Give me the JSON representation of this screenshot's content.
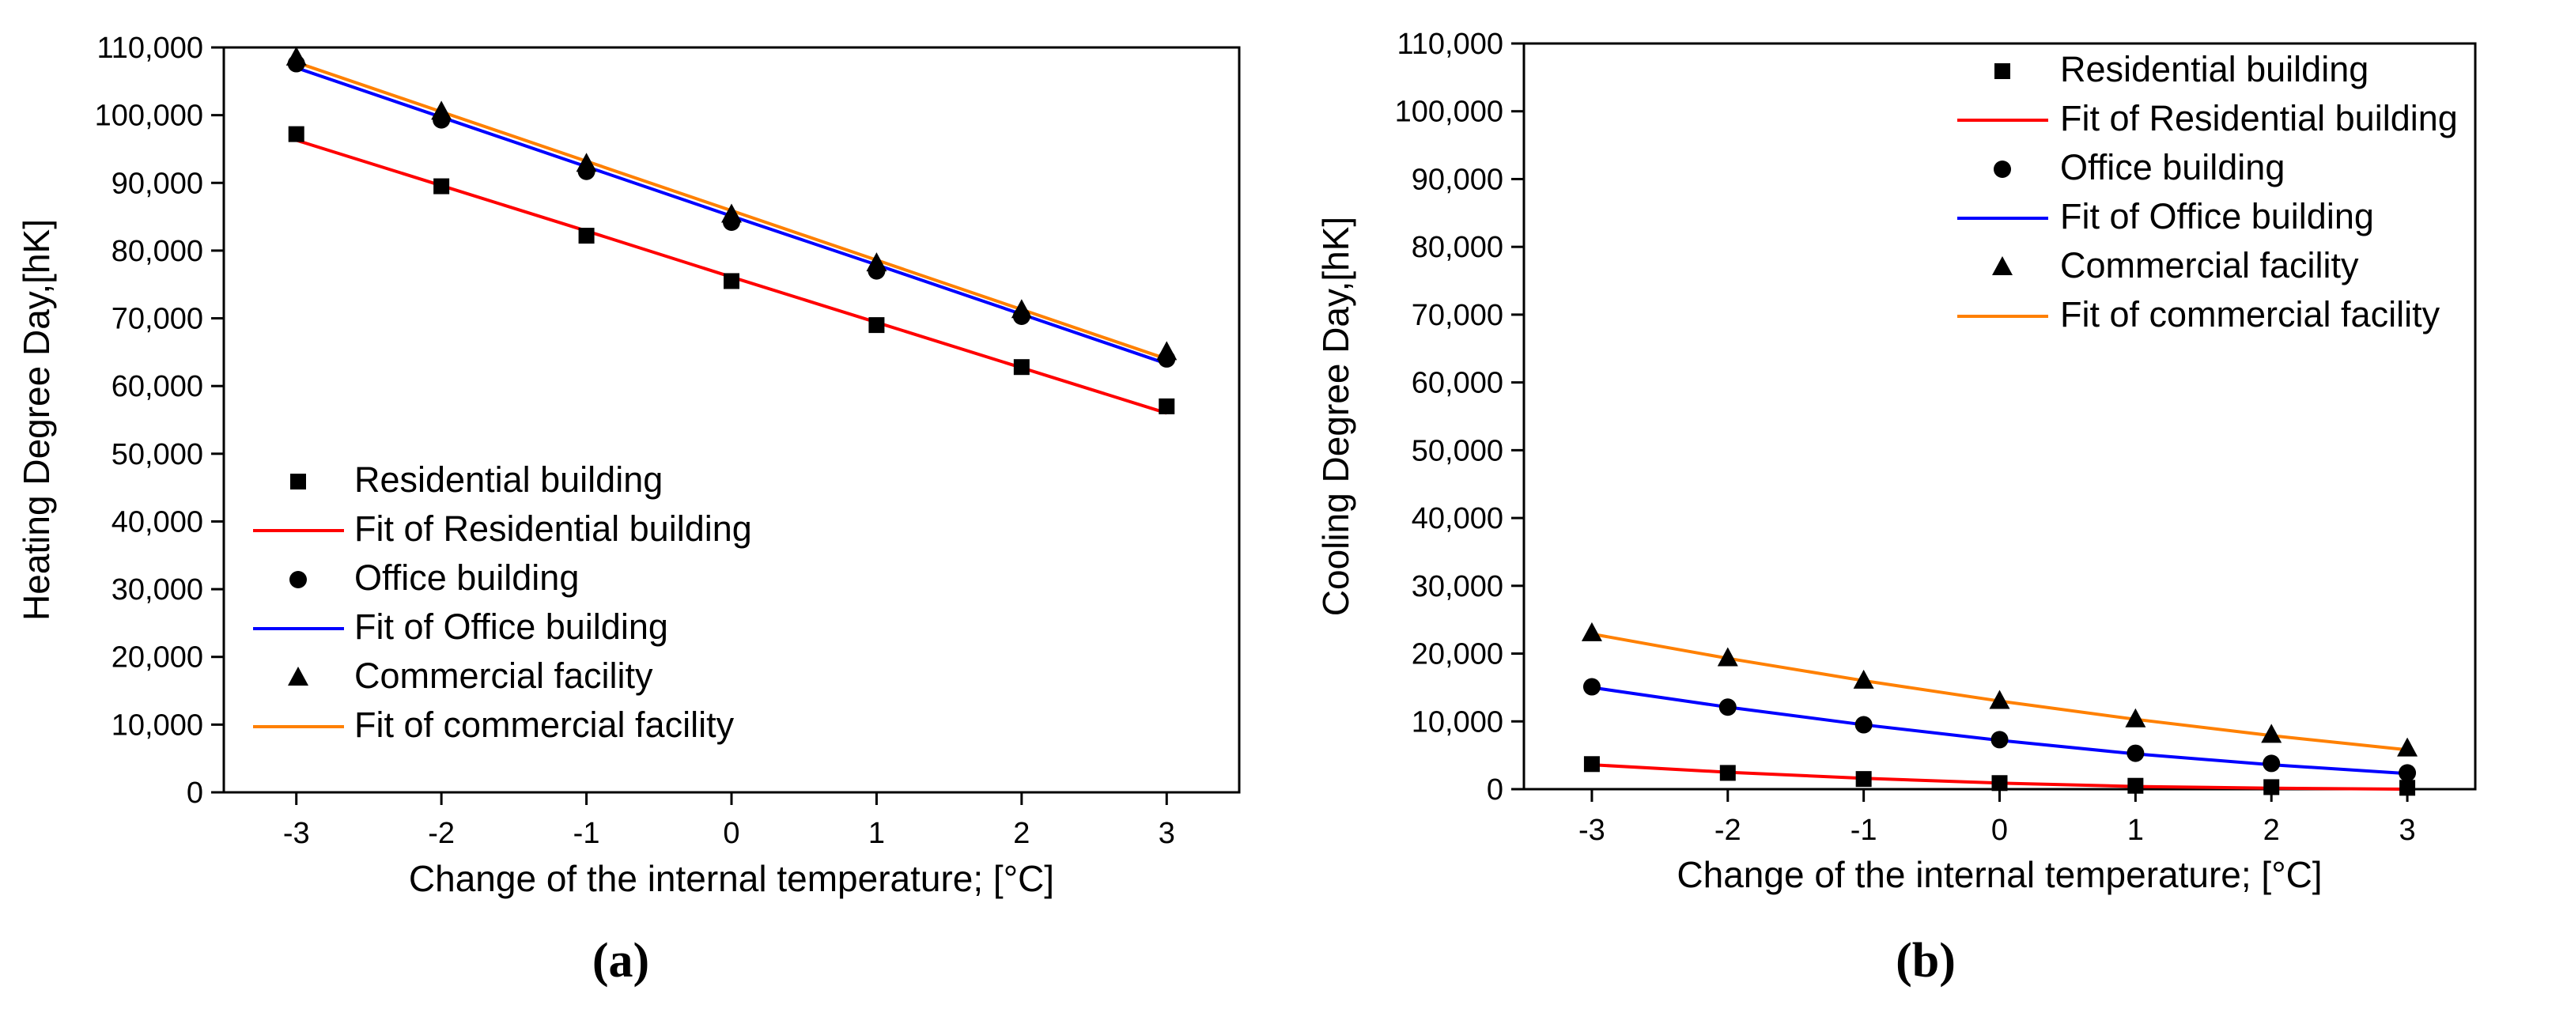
{
  "colors": {
    "residential": "#ff0000",
    "office": "#0000ff",
    "commercial": "#ff8000",
    "markers": "#000000"
  },
  "chart_data": [
    {
      "type": "scatter",
      "panel_label": "(a)",
      "xlabel": "Change of the internal temperature; [°C]",
      "ylabel": "Heating Degree Day,[hK]",
      "x": [
        -3,
        -2,
        -1,
        0,
        1,
        2,
        3
      ],
      "xlim": [
        -3.5,
        3.5
      ],
      "ylim": [
        0,
        110000
      ],
      "xticks": [
        -3,
        -2,
        -1,
        0,
        1,
        2,
        3
      ],
      "yticks": [
        0,
        10000,
        20000,
        30000,
        40000,
        50000,
        60000,
        70000,
        80000,
        90000,
        100000,
        110000
      ],
      "ytick_labels": [
        "0",
        "10,000",
        "20,000",
        "30,000",
        "40,000",
        "50,000",
        "60,000",
        "70,000",
        "80,000",
        "90,000",
        "100,000",
        "110,000"
      ],
      "legend_position": "bottom-left",
      "series": [
        {
          "name": "Residential building",
          "marker": "square",
          "values": [
            97200,
            89500,
            82200,
            75500,
            69000,
            62800,
            57000
          ],
          "fit_name": "Fit of Residential building",
          "fit": [
            96300,
            89600,
            82900,
            76100,
            69400,
            62700,
            56000
          ],
          "color_key": "residential"
        },
        {
          "name": "Office building",
          "marker": "circle",
          "values": [
            107600,
            99300,
            91700,
            84200,
            77000,
            70300,
            64000
          ],
          "fit_name": "Fit of Office building",
          "fit": [
            107000,
            99700,
            92400,
            85100,
            77900,
            70600,
            63300
          ],
          "color_key": "office"
        },
        {
          "name": "Commercial facility",
          "marker": "triangle",
          "values": [
            108500,
            100500,
            92800,
            85300,
            78100,
            71200,
            65000
          ],
          "fit_name": "Fit of commercial facility",
          "fit": [
            107800,
            100500,
            93200,
            85900,
            78600,
            71300,
            64000
          ],
          "color_key": "commercial"
        }
      ]
    },
    {
      "type": "scatter",
      "panel_label": "(b)",
      "xlabel": "Change of the internal temperature; [°C]",
      "ylabel": "Cooling Degree Day,[hK]",
      "x": [
        -3,
        -2,
        -1,
        0,
        1,
        2,
        3
      ],
      "xlim": [
        -3.5,
        3.5
      ],
      "ylim": [
        0,
        110000
      ],
      "xticks": [
        -3,
        -2,
        -1,
        0,
        1,
        2,
        3
      ],
      "yticks": [
        0,
        10000,
        20000,
        30000,
        40000,
        50000,
        60000,
        70000,
        80000,
        90000,
        100000,
        110000
      ],
      "ytick_labels": [
        "0",
        "10,000",
        "20,000",
        "30,000",
        "40,000",
        "50,000",
        "60,000",
        "70,000",
        "80,000",
        "90,000",
        "100,000",
        "110,000"
      ],
      "legend_position": "top-right",
      "series": [
        {
          "name": "Residential building",
          "marker": "square",
          "values": [
            3700,
            2400,
            1500,
            900,
            500,
            300,
            200
          ],
          "fit_name": "Fit of Residential building",
          "fit": [
            3600,
            2500,
            1600,
            900,
            400,
            150,
            0
          ],
          "color_key": "residential"
        },
        {
          "name": "Office building",
          "marker": "circle",
          "values": [
            15100,
            12100,
            9500,
            7300,
            5300,
            3800,
            2400
          ],
          "fit_name": "Fit of Office building",
          "fit": [
            15000,
            12100,
            9500,
            7200,
            5200,
            3600,
            2300
          ],
          "color_key": "office"
        },
        {
          "name": "Commercial facility",
          "marker": "triangle",
          "values": [
            23000,
            19300,
            16000,
            13000,
            10300,
            8000,
            6000
          ],
          "fit_name": "Fit of commercial facility",
          "fit": [
            22900,
            19300,
            16000,
            13000,
            10300,
            7900,
            5800
          ],
          "color_key": "commercial"
        }
      ]
    }
  ]
}
